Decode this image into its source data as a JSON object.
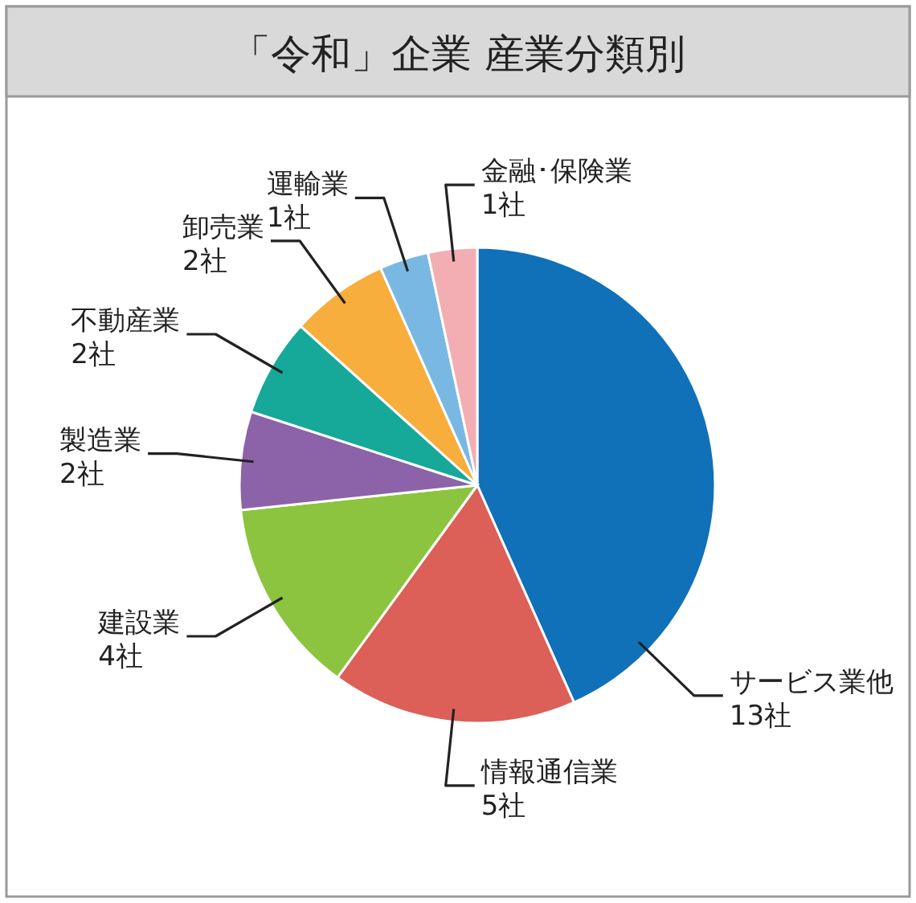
{
  "chart_data": {
    "type": "pie",
    "title": "「令和」企業 産業分類別",
    "categories": [
      "サービス業他",
      "情報通信業",
      "建設業",
      "製造業",
      "不動産業",
      "卸売業",
      "運輸業",
      "金融･保険業"
    ],
    "values": [
      13,
      5,
      4,
      2,
      2,
      2,
      1,
      1
    ],
    "value_labels": [
      "13社",
      "5社",
      "4社",
      "2社",
      "2社",
      "2社",
      "1社",
      "1社"
    ],
    "colors": [
      "#1070b8",
      "#dc5f58",
      "#8cc43f",
      "#8c62a8",
      "#16a99a",
      "#f7ae3d",
      "#7ab8e4",
      "#f3aeb3"
    ]
  }
}
